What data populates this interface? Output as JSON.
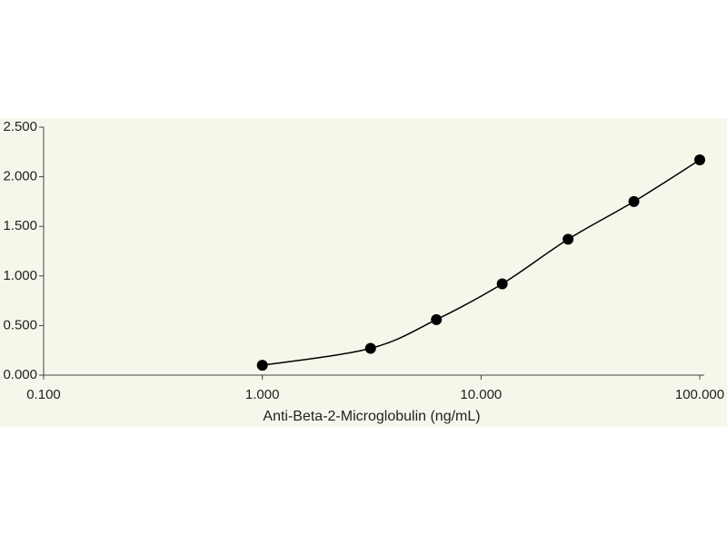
{
  "chart_data": {
    "type": "scatter",
    "x_label": "Anti-Beta-2-Microglobulin (ng/mL)",
    "x_scale": "log",
    "fit_line": true,
    "color": "#000000",
    "background": "#f4f8ea",
    "x": [
      1,
      3.125,
      6.25,
      12.5,
      25,
      50,
      100
    ],
    "values": [
      0.1,
      0.27,
      0.56,
      0.92,
      1.37,
      1.75,
      2.17
    ],
    "xlim": [
      0.1,
      100
    ],
    "xticks": [
      {
        "value": 0.1,
        "label": "0.100"
      },
      {
        "value": 1,
        "label": "1.000"
      },
      {
        "value": 10,
        "label": "10.000"
      },
      {
        "value": 100,
        "label": "100.000"
      }
    ],
    "ylim": [
      0,
      2.5
    ],
    "yticks": [
      {
        "value": 0,
        "label": "0.000"
      },
      {
        "value": 0.5,
        "label": "0.500"
      },
      {
        "value": 1,
        "label": "1.000"
      },
      {
        "value": 1.5,
        "label": "1.500"
      },
      {
        "value": 2,
        "label": "2.000"
      },
      {
        "value": 2.5,
        "label": "2.500"
      }
    ]
  }
}
